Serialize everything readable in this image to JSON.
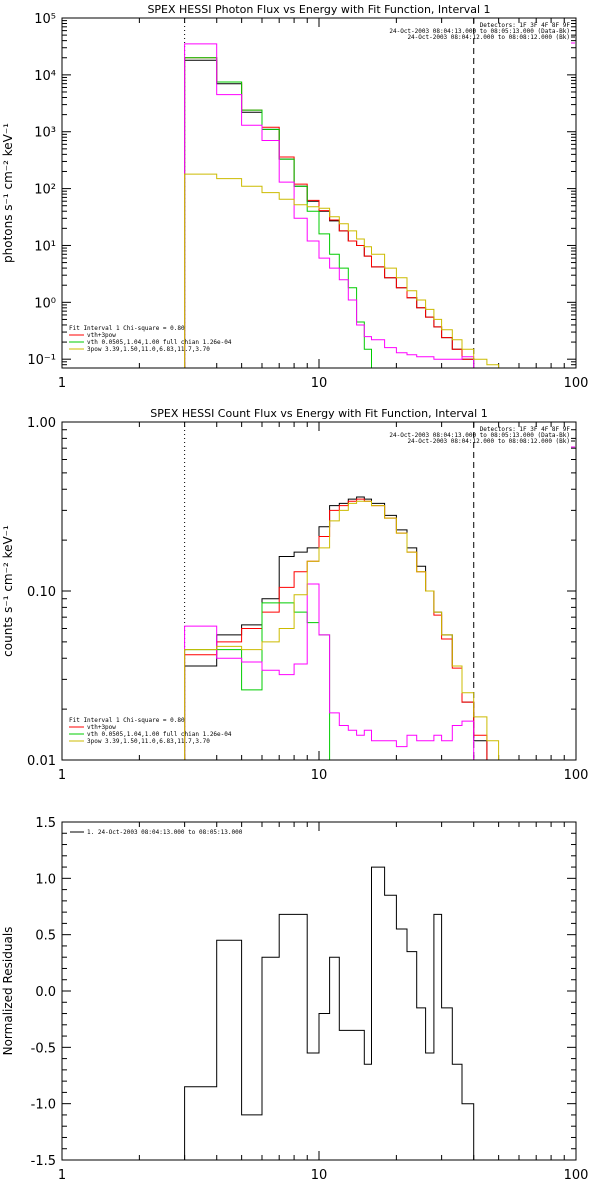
{
  "chart_data": [
    {
      "type": "line",
      "title": "SPEX HESSI Photon Flux vs Energy with Fit Function, Interval 1",
      "ylabel": "photons s⁻¹ cm⁻² keV⁻¹",
      "xlabel": "",
      "xscale": "log",
      "yscale": "log",
      "xlim": [
        1,
        100
      ],
      "ylim": [
        0.07,
        100000
      ],
      "xticks": [
        1,
        10,
        100
      ],
      "xtick_labels": [
        "1",
        "10",
        "100"
      ],
      "yticks": [
        0.1,
        1,
        10,
        100,
        1000,
        10000,
        100000
      ],
      "ytick_labels": [
        "10⁻¹",
        "10⁰",
        "10¹",
        "10²",
        "10³",
        "10⁴",
        "10⁵"
      ],
      "vlines": [
        {
          "x": 3,
          "style": "dotted"
        },
        {
          "x": 40,
          "style": "dashed"
        }
      ],
      "info_lines": [
        "Detectors: 1F 3F 4F 8F 9F",
        "24-Oct-2003 08:04:13.000 to 08:05:13.000 (Data-Bk)",
        "24-Oct-2003 08:04:12.000 to 08:08:12.000 (Bk)"
      ],
      "fit_lines": [
        "Fit Interval 1    Chi-square = 0.80",
        "vth+3pow",
        "vth 0.0505,1.04,1.00  full chian 1.26e-04",
        "3pow 3.39,1.50,11.0,6.83,11.7,3.70"
      ],
      "series": [
        {
          "color": "#000000",
          "edges": [
            3,
            3.5,
            4,
            4.5,
            5,
            5.5,
            6,
            6.5,
            7,
            8,
            9,
            10,
            11,
            12,
            13,
            14,
            15,
            16,
            18,
            20,
            22,
            24,
            26,
            28,
            30,
            33,
            36,
            40
          ],
          "values": [
            18000,
            18000,
            7000,
            7000,
            2200,
            2200,
            1100,
            1100,
            330,
            110,
            60,
            40,
            27,
            18,
            12,
            10,
            6.5,
            4.2,
            2.7,
            1.8,
            1.2,
            0.8,
            0.55,
            0.37,
            0.24,
            0.15,
            0.1
          ],
          "y_end": 0.1
        },
        {
          "color": "#ff0000",
          "edges": [
            3,
            3.5,
            4,
            4.5,
            5,
            5.5,
            6,
            6.5,
            7,
            8,
            9,
            10,
            11,
            12,
            13,
            14,
            15,
            16,
            18,
            20,
            22,
            24,
            26,
            28,
            30,
            33,
            36,
            40
          ],
          "values": [
            20000,
            20000,
            7500,
            7500,
            2400,
            2400,
            1200,
            1200,
            360,
            120,
            62,
            41,
            28,
            18,
            12,
            10,
            6.5,
            4.2,
            2.7,
            1.8,
            1.2,
            0.8,
            0.55,
            0.37,
            0.24,
            0.15,
            0.1
          ],
          "y_end": 0.1
        },
        {
          "color": "#00cc00",
          "edges": [
            3,
            3.5,
            4,
            4.5,
            5,
            5.5,
            6,
            6.5,
            7,
            8,
            9,
            10,
            11,
            12,
            13,
            14,
            15,
            16,
            18
          ],
          "values": [
            20000,
            20000,
            7500,
            7500,
            2400,
            2400,
            1100,
            1100,
            330,
            110,
            40,
            16,
            7,
            4,
            1.8,
            0.45,
            0.15,
            0.07
          ],
          "y_end": 0.07
        },
        {
          "color": "#ff00ff",
          "edges": [
            3,
            3.5,
            4,
            4.5,
            5,
            5.5,
            6,
            6.5,
            7,
            8,
            9,
            10,
            11,
            12,
            13,
            14,
            15,
            16,
            18,
            20,
            22,
            24,
            26,
            28,
            30,
            33,
            36,
            40
          ],
          "values": [
            35000,
            35000,
            4500,
            4500,
            1300,
            1300,
            700,
            700,
            130,
            30,
            12,
            6,
            4,
            2.5,
            1.1,
            0.4,
            0.25,
            0.22,
            0.16,
            0.13,
            0.12,
            0.11,
            0.11,
            0.1,
            0.1,
            0.1,
            0.11
          ],
          "y_end": 0.07
        },
        {
          "color": "#ccbb00",
          "edges": [
            3,
            3.5,
            4,
            4.5,
            5,
            5.5,
            6,
            6.5,
            7,
            8,
            9,
            10,
            11,
            12,
            13,
            14,
            15,
            16,
            18,
            20,
            22,
            24,
            26,
            28,
            30,
            33,
            36,
            40,
            45,
            50
          ],
          "values": [
            180,
            180,
            150,
            150,
            110,
            110,
            85,
            85,
            65,
            52,
            48,
            45,
            32,
            24,
            18,
            13,
            9.5,
            7,
            4,
            2.7,
            1.6,
            1.1,
            0.75,
            0.5,
            0.33,
            0.22,
            0.15,
            0.1,
            0.08
          ],
          "y_end": 0.07
        }
      ]
    },
    {
      "type": "line",
      "title": "SPEX HESSI Count Flux vs Energy with Fit Function, Interval 1",
      "ylabel": "counts s⁻¹ cm⁻² keV⁻¹",
      "xlabel": "",
      "xscale": "log",
      "yscale": "log",
      "xlim": [
        1,
        100
      ],
      "ylim": [
        0.01,
        1
      ],
      "xticks": [
        1,
        10,
        100
      ],
      "xtick_labels": [
        "1",
        "10",
        "100"
      ],
      "yticks": [
        0.01,
        0.1,
        1
      ],
      "ytick_labels": [
        "0.01",
        "0.10",
        "1.00"
      ],
      "vlines": [
        {
          "x": 3,
          "style": "dotted"
        },
        {
          "x": 40,
          "style": "dashed"
        }
      ],
      "info_lines": [
        "Detectors: 1F 3F 4F 8F 9F",
        "24-Oct-2003 08:04:13.000 to 08:05:13.000 (Data-Bk)",
        "24-Oct-2003 08:04:12.000 to 08:08:12.000 (Bk)"
      ],
      "fit_lines": [
        "Fit Interval 1    Chi-square = 0.80",
        "vth+3pow",
        "vth 0.0505,1.04,1.00  full chian 1.26e-04",
        "3pow 3.39,1.50,11.0,6.83,11.7,3.70"
      ],
      "series": [
        {
          "color": "#000000",
          "edges": [
            3,
            3.5,
            4,
            4.5,
            5,
            5.5,
            6,
            6.5,
            7,
            8,
            9,
            10,
            11,
            12,
            13,
            14,
            15,
            16,
            18,
            20,
            22,
            24,
            26,
            28,
            30,
            33,
            36,
            40,
            45
          ],
          "values": [
            0.036,
            0.036,
            0.055,
            0.055,
            0.063,
            0.063,
            0.09,
            0.09,
            0.16,
            0.17,
            0.18,
            0.24,
            0.32,
            0.33,
            0.35,
            0.36,
            0.35,
            0.33,
            0.28,
            0.23,
            0.18,
            0.14,
            0.1,
            0.075,
            0.055,
            0.036,
            0.022,
            0.013
          ],
          "y_end": 0.01
        },
        {
          "color": "#ff0000",
          "edges": [
            3,
            3.5,
            4,
            4.5,
            5,
            5.5,
            6,
            6.5,
            7,
            8,
            9,
            10,
            11,
            12,
            13,
            14,
            15,
            16,
            18,
            20,
            22,
            24,
            26,
            28,
            30,
            33,
            36,
            40,
            45
          ],
          "values": [
            0.042,
            0.042,
            0.05,
            0.05,
            0.06,
            0.06,
            0.075,
            0.075,
            0.105,
            0.13,
            0.15,
            0.21,
            0.3,
            0.32,
            0.34,
            0.35,
            0.34,
            0.32,
            0.27,
            0.22,
            0.17,
            0.13,
            0.1,
            0.072,
            0.052,
            0.035,
            0.022,
            0.014
          ],
          "y_end": 0.01
        },
        {
          "color": "#00cc00",
          "edges": [
            3,
            3.5,
            4,
            4.5,
            5,
            5.5,
            6,
            6.5,
            7,
            8,
            9,
            10,
            11
          ],
          "values": [
            0.045,
            0.045,
            0.045,
            0.045,
            0.026,
            0.026,
            0.085,
            0.085,
            0.085,
            0.075,
            0.065,
            0.055
          ],
          "y_end": 0.01
        },
        {
          "color": "#ff00ff",
          "edges": [
            3,
            3.5,
            4,
            4.5,
            5,
            5.5,
            6,
            6.5,
            7,
            8,
            9,
            10,
            11,
            12,
            13,
            14,
            15,
            16,
            18,
            20,
            22,
            24,
            26,
            28,
            30,
            33,
            36,
            40
          ],
          "values": [
            0.062,
            0.062,
            0.04,
            0.04,
            0.038,
            0.038,
            0.034,
            0.034,
            0.032,
            0.037,
            0.11,
            0.055,
            0.019,
            0.016,
            0.015,
            0.014,
            0.015,
            0.013,
            0.013,
            0.012,
            0.014,
            0.013,
            0.013,
            0.014,
            0.013,
            0.016,
            0.017
          ],
          "y_end": 0.01
        },
        {
          "color": "#ccbb00",
          "edges": [
            3,
            3.5,
            4,
            4.5,
            5,
            5.5,
            6,
            6.5,
            7,
            8,
            9,
            10,
            11,
            12,
            13,
            14,
            15,
            16,
            18,
            20,
            22,
            24,
            26,
            28,
            30,
            33,
            36,
            40,
            45,
            50,
            55
          ],
          "values": [
            0.045,
            0.045,
            0.047,
            0.047,
            0.045,
            0.045,
            0.05,
            0.05,
            0.06,
            0.095,
            0.15,
            0.18,
            0.26,
            0.3,
            0.33,
            0.34,
            0.34,
            0.32,
            0.27,
            0.22,
            0.17,
            0.13,
            0.1,
            0.075,
            0.055,
            0.036,
            0.025,
            0.018,
            0.013,
            0.01
          ],
          "y_end": 0.008
        }
      ]
    },
    {
      "type": "line",
      "title": "",
      "ylabel": "Normalized Residuals",
      "xlabel": "",
      "xscale": "log",
      "yscale": "linear",
      "xlim": [
        1,
        100
      ],
      "ylim": [
        -1.5,
        1.5
      ],
      "xticks": [
        1,
        10,
        100
      ],
      "xtick_labels": [
        "1",
        "10",
        "100"
      ],
      "yticks": [
        -1.5,
        -1.0,
        -0.5,
        0.0,
        0.5,
        1.0,
        1.5
      ],
      "ytick_labels": [
        "-1.5",
        "-1.0",
        "-0.5",
        "0.0",
        "0.5",
        "1.0",
        "1.5"
      ],
      "legend": [
        {
          "label": "1. 24-Oct-2003 08:04:13.000 to 08:05:13.000",
          "color": "#000000"
        }
      ],
      "series": [
        {
          "color": "#000000",
          "edges": [
            3,
            3.5,
            4,
            4.5,
            5,
            5.5,
            6,
            6.5,
            7,
            8,
            9,
            10,
            11,
            12,
            13,
            14,
            15,
            16,
            18,
            20,
            22,
            24,
            26,
            28,
            30,
            33,
            36,
            40
          ],
          "values": [
            -0.85,
            -0.85,
            0.45,
            0.45,
            -1.1,
            -1.1,
            0.3,
            0.3,
            0.68,
            0.68,
            -0.55,
            -0.2,
            0.3,
            -0.35,
            -0.35,
            -0.35,
            -0.65,
            1.1,
            0.85,
            0.55,
            0.35,
            -0.15,
            -0.55,
            0.68,
            -0.15,
            -0.65,
            -1.0
          ],
          "y_start": -1.5,
          "y_end": -1.5
        }
      ]
    }
  ]
}
